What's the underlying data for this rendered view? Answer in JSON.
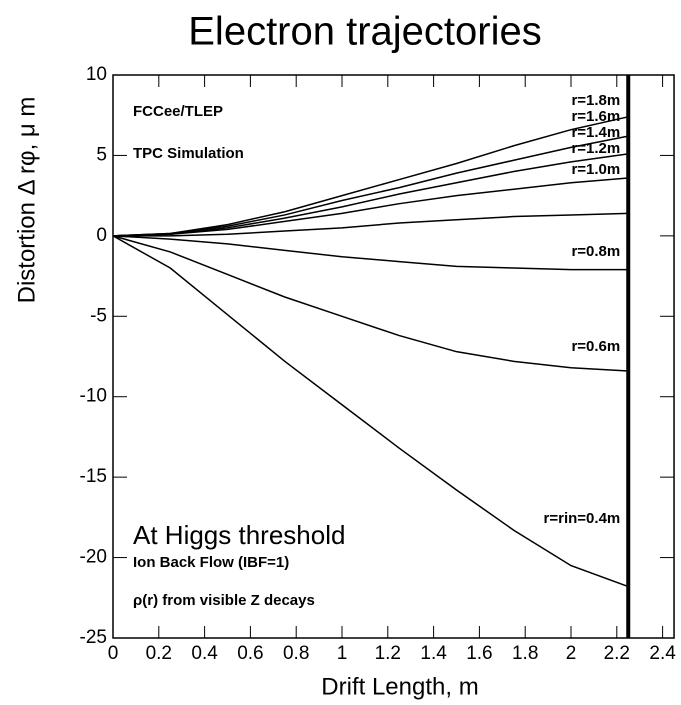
{
  "chart_data": {
    "type": "line",
    "title": "Electron trajectories",
    "xlabel": "Drift Length, m",
    "ylabel": "Distortion Δ rφ, μ m",
    "annotations": [
      "FCCee/TLEP",
      "TPC Simulation",
      "At Higgs threshold",
      "Ion Back Flow (IBF=1)",
      "ρ(r) from visible Z decays"
    ],
    "x": [
      0,
      0.25,
      0.5,
      0.75,
      1,
      1.25,
      1.5,
      1.75,
      2,
      2.25
    ],
    "series": [
      {
        "name": "r=1.8m",
        "color": "#000000",
        "values": [
          0,
          0.15,
          0.7,
          1.5,
          2.5,
          3.5,
          4.5,
          5.6,
          6.6,
          7.4
        ]
      },
      {
        "name": "r=1.6m",
        "color": "#000000",
        "values": [
          0,
          0.15,
          0.6,
          1.3,
          2.2,
          3.0,
          3.9,
          4.7,
          5.5,
          6.2
        ]
      },
      {
        "name": "r=1.4m",
        "color": "#000000",
        "values": [
          0,
          0.1,
          0.5,
          1.1,
          1.8,
          2.6,
          3.3,
          4.0,
          4.6,
          5.1
        ]
      },
      {
        "name": "r=1.2m",
        "color": "#000000",
        "values": [
          0,
          0.1,
          0.4,
          0.9,
          1.4,
          2.0,
          2.5,
          2.9,
          3.3,
          3.6
        ]
      },
      {
        "name": "r=1.0m",
        "color": "#000000",
        "values": [
          0,
          0,
          0.1,
          0.3,
          0.5,
          0.8,
          1.0,
          1.2,
          1.3,
          1.4
        ]
      },
      {
        "name": "r=0.8m",
        "color": "#000000",
        "values": [
          0,
          -0.2,
          -0.5,
          -0.9,
          -1.3,
          -1.6,
          -1.9,
          -2.0,
          -2.1,
          -2.1
        ]
      },
      {
        "name": "r=0.6m",
        "color": "#000000",
        "values": [
          0,
          -1.0,
          -2.4,
          -3.8,
          -5.0,
          -6.2,
          -7.2,
          -7.8,
          -8.2,
          -8.4
        ]
      },
      {
        "name": "r=rin=0.4m",
        "color": "#000000",
        "values": [
          0,
          -2.0,
          -4.9,
          -7.8,
          -10.5,
          -13.2,
          -15.8,
          -18.3,
          -20.5,
          -21.8
        ]
      }
    ],
    "vline_x": 2.25,
    "xlim": [
      0,
      2.45
    ],
    "xticks": [
      0,
      0.2,
      0.4,
      0.6,
      0.8,
      1,
      1.2,
      1.4,
      1.6,
      1.8,
      2,
      2.2,
      2.4
    ],
    "ylim": [
      -25,
      10
    ],
    "yticks": [
      -25,
      -20,
      -15,
      -10,
      -5,
      0,
      5,
      10
    ]
  }
}
